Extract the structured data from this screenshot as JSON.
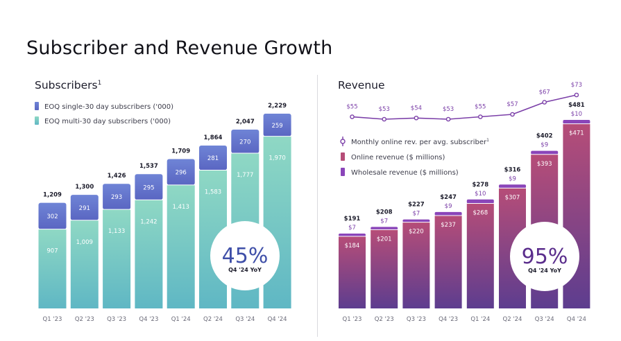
{
  "title": "Subscriber and Revenue Growth",
  "colors": {
    "single_top": "#6f84d6",
    "single_bottom": "#5a66c2",
    "multi_top": "#8fd8c4",
    "multi_bottom": "#5fb7c4",
    "online_top": "#b64d78",
    "online_bottom": "#5d3d8f",
    "wholesale": "#8a45b9",
    "line": "#7b3fa8",
    "label_purple": "#7b3fa8",
    "axis_text": "#6a6a78"
  },
  "chart_data": [
    {
      "type": "bar",
      "stacked": true,
      "title": "Subscribers",
      "title_sup": "1",
      "categories": [
        "Q1 '23",
        "Q2 '23",
        "Q3 '23",
        "Q4 '23",
        "Q1 '24",
        "Q2 '24",
        "Q3 '24",
        "Q4 '24"
      ],
      "series": [
        {
          "name": "EOQ multi-30 day subscribers  ('000)",
          "values": [
            907,
            1009,
            1133,
            1242,
            1413,
            1583,
            1777,
            1970
          ],
          "color_key": "multi"
        },
        {
          "name": "EOQ single-30 day subscribers ('000)",
          "values": [
            302,
            291,
            293,
            295,
            296,
            281,
            270,
            259
          ],
          "color_key": "single"
        }
      ],
      "totals": [
        "1,209",
        "1,300",
        "1,426",
        "1,537",
        "1,709",
        "1,864",
        "2,047",
        "2,229"
      ],
      "value_labels": {
        "multi": [
          "907",
          "1,009",
          "1,133",
          "1,242",
          "1,413",
          "1,583",
          "1,777",
          "1,970"
        ],
        "single": [
          "302",
          "291",
          "293",
          "295",
          "296",
          "281",
          "270",
          "259"
        ]
      },
      "ylim": [
        0,
        2229
      ],
      "legend_position": "top-left",
      "callout": {
        "value": "45%",
        "label": "Q4 '24 YoY"
      }
    },
    {
      "type": "bar",
      "stacked": true,
      "title": "Revenue",
      "categories": [
        "Q1 '23",
        "Q2 '23",
        "Q3 '23",
        "Q4 '23",
        "Q1 '24",
        "Q2 '24",
        "Q3 '24",
        "Q4 '24"
      ],
      "series": [
        {
          "name": "Online revenue ($ millions)",
          "values": [
            184,
            201,
            220,
            237,
            268,
            307,
            393,
            471
          ],
          "color_key": "online"
        },
        {
          "name": "Wholesale revenue ($ millions)",
          "values": [
            7,
            7,
            7,
            9,
            10,
            9,
            9,
            10
          ],
          "color_key": "wholesale"
        }
      ],
      "line_series": {
        "name": "Monthly online rev. per avg. subscriber",
        "name_sup": "1",
        "values": [
          55,
          53,
          54,
          53,
          55,
          57,
          67,
          73
        ],
        "labels": [
          "$55",
          "$53",
          "$54",
          "$53",
          "$55",
          "$57",
          "$67",
          "$73"
        ]
      },
      "totals": [
        "$191",
        "$208",
        "$227",
        "$247",
        "$278",
        "$316",
        "$402",
        "$481"
      ],
      "value_labels": {
        "online": [
          "$184",
          "$201",
          "$220",
          "$237",
          "$268",
          "$307",
          "$393",
          "$471"
        ],
        "wholesale": [
          "$7",
          "$7",
          "$7",
          "$9",
          "$10",
          "$9",
          "$9",
          "$10"
        ]
      },
      "ylim": [
        0,
        481
      ],
      "legend_position": "top-left",
      "callout": {
        "value": "95%",
        "label": "Q4 '24 YoY"
      }
    }
  ]
}
